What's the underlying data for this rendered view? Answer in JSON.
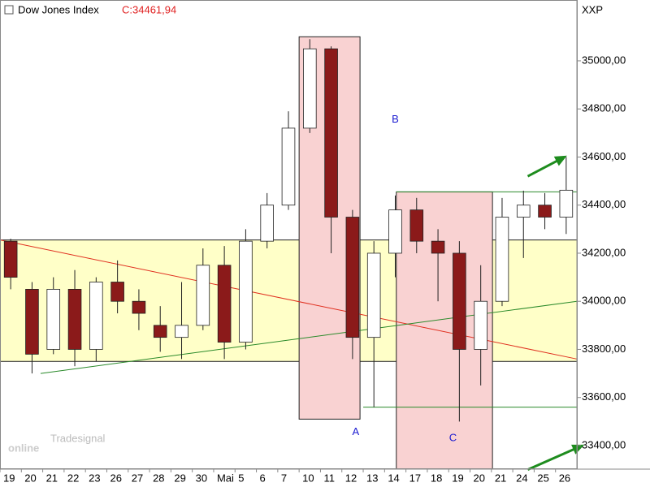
{
  "chart_data": {
    "type": "candlestick",
    "title": "Dow Jones Index",
    "last_label": "C:34461,94",
    "axis_label": "XXP",
    "watermark": {
      "brand": "Tradesignal",
      "logo": "online"
    },
    "categories": [
      "19",
      "20",
      "21",
      "22",
      "23",
      "26",
      "27",
      "28",
      "29",
      "30",
      "Mai",
      "5",
      "6",
      "7",
      "10",
      "11",
      "12",
      "13",
      "14",
      "17",
      "18",
      "19",
      "20",
      "21",
      "24",
      "25",
      "26"
    ],
    "open": [
      34250,
      34050,
      33800,
      34050,
      33800,
      34080,
      34000,
      33900,
      33850,
      33900,
      34150,
      33830,
      34250,
      34400,
      34720,
      35050,
      34350,
      33850,
      34200,
      34380,
      34250,
      34200,
      33800,
      34000,
      34350,
      34400,
      34350
    ],
    "high": [
      34260,
      34080,
      34100,
      34130,
      34100,
      34170,
      34050,
      33980,
      34080,
      34220,
      34230,
      34300,
      34450,
      34790,
      35090,
      35060,
      34380,
      34250,
      34440,
      34430,
      34300,
      34250,
      34150,
      34430,
      34460,
      34450,
      34600
    ],
    "low": [
      34050,
      33700,
      33780,
      33730,
      33750,
      33950,
      33880,
      33790,
      33760,
      33880,
      33760,
      33800,
      34220,
      34380,
      34700,
      34200,
      33760,
      33560,
      34100,
      34200,
      34000,
      33500,
      33650,
      33980,
      34180,
      34300,
      34280
    ],
    "close": [
      34100,
      33780,
      34050,
      33800,
      34080,
      34000,
      33950,
      33850,
      33900,
      34150,
      33830,
      34250,
      34400,
      34720,
      35050,
      34350,
      33850,
      34200,
      34380,
      34250,
      34200,
      33800,
      34000,
      34350,
      34400,
      34350,
      34462
    ],
    "up_color": "#ffffff",
    "down_color": "#8b1a1a",
    "ylim": [
      33302,
      35253
    ],
    "yticks": [
      {
        "value": 33400,
        "label": "33400,00"
      },
      {
        "value": 33600,
        "label": "33600,00"
      },
      {
        "value": 33800,
        "label": "33800,00"
      },
      {
        "value": 34000,
        "label": "34000,00"
      },
      {
        "value": 34200,
        "label": "34200,00"
      },
      {
        "value": 34400,
        "label": "34400,00"
      },
      {
        "value": 34600,
        "label": "34600,00"
      },
      {
        "value": 34800,
        "label": "34800,00"
      },
      {
        "value": 35000,
        "label": "35000,00"
      }
    ],
    "zones": [
      {
        "x": [
          0,
          27
        ],
        "y": [
          33750,
          34255
        ],
        "color": "#ffffc8"
      },
      {
        "x": [
          14,
          16.85
        ],
        "y": [
          33510,
          35100
        ],
        "color": "#f9d2d2"
      },
      {
        "x": [
          18.55,
          23.05
        ],
        "y": [
          33302,
          34455
        ],
        "color": "#f9d2d2"
      }
    ],
    "lines": [
      {
        "x": [
          0,
          27
        ],
        "y": [
          34255,
          33760
        ],
        "color": "#e03020"
      },
      {
        "x": [
          1.9,
          27
        ],
        "y": [
          33700,
          34000
        ],
        "color": "#2a8a2a"
      },
      {
        "x": [
          18.55,
          27
        ],
        "y": [
          34455,
          34455
        ],
        "color": "#2a8a2a"
      },
      {
        "x": [
          17,
          27
        ],
        "y": [
          33560,
          33560
        ],
        "color": "#2a8a2a"
      }
    ],
    "arrows": [
      {
        "x": [
          24.7,
          26.2
        ],
        "y": [
          34520,
          34590
        ],
        "color": "#1e8c1e"
      },
      {
        "x": [
          24.7,
          27
        ],
        "y": [
          33300,
          33390
        ],
        "color": "#1e8c1e"
      }
    ],
    "annotations": [
      {
        "text": "A",
        "x": 16.65,
        "y": 33455
      },
      {
        "text": "B",
        "x": 18.5,
        "y": 34755
      },
      {
        "text": "C",
        "x": 21.2,
        "y": 33430
      }
    ]
  }
}
